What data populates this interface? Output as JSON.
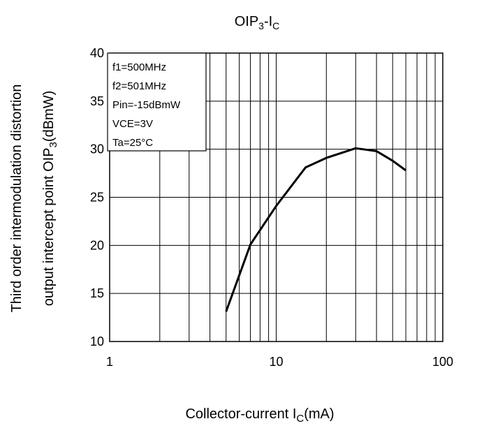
{
  "chart_data": {
    "type": "line",
    "title": {
      "main": "OIP",
      "sub": "3",
      "tail": "-I",
      "sub2": "C"
    },
    "xlabel": {
      "main": "Collector-current I",
      "sub": "C",
      "tail": "(mA)"
    },
    "ylabel": {
      "line1": "Third order intermodulation distortion",
      "line2_main": "output intercept point OIP",
      "line2_sub": "3",
      "line2_tail": "(dBmW)"
    },
    "x_scale": "log",
    "xlim": [
      1,
      100
    ],
    "ylim": [
      10,
      40
    ],
    "x_ticks": [
      1,
      10,
      100
    ],
    "x_tick_labels": [
      "1",
      "10",
      "100"
    ],
    "y_ticks": [
      10,
      15,
      20,
      25,
      30,
      35,
      40
    ],
    "y_tick_labels": [
      "10",
      "15",
      "20",
      "25",
      "30",
      "35",
      "40"
    ],
    "grid": true,
    "legend_position": "top-left",
    "conditions": [
      "f1=500MHz",
      "f2=501MHz",
      "Pin=-15dBmW",
      "VCE=3V",
      "Ta=25°C"
    ],
    "series": [
      {
        "x": [
          5,
          7,
          10,
          15,
          20,
          30,
          40,
          50,
          60
        ],
        "y": [
          13.1,
          20.1,
          24.1,
          28.1,
          29.1,
          30.1,
          29.8,
          28.8,
          27.8
        ]
      }
    ],
    "line_color": "#000000"
  }
}
